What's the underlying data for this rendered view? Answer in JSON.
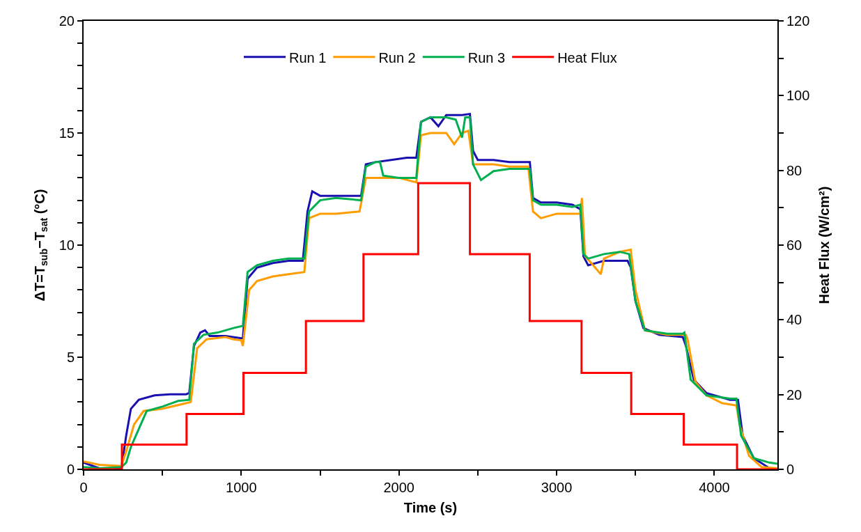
{
  "chart_data": {
    "type": "line",
    "xlabel": "Time (s)",
    "ylabel": "ΔT=T$_{sub}$−T$_{sat}$ (°C)",
    "y2label": "Heat Flux (W/cm²)",
    "xlim": [
      0,
      4400
    ],
    "ylim": [
      0,
      20
    ],
    "y2lim": [
      0,
      120
    ],
    "xticks": [
      0,
      {
        "value": 500,
        "label": null
      },
      1000,
      {
        "value": 1500,
        "label": null
      },
      2000,
      {
        "value": 2500,
        "label": null
      },
      3000,
      {
        "value": 3500,
        "label": null
      },
      4000
    ],
    "yticks": [
      0,
      {
        "value": 1,
        "label": null
      },
      {
        "value": 2,
        "label": null
      },
      {
        "value": 3,
        "label": null
      },
      {
        "value": 4,
        "label": null
      },
      5,
      {
        "value": 6,
        "label": null
      },
      {
        "value": 7,
        "label": null
      },
      {
        "value": 8,
        "label": null
      },
      {
        "value": 9,
        "label": null
      },
      10,
      {
        "value": 11,
        "label": null
      },
      {
        "value": 12,
        "label": null
      },
      {
        "value": 13,
        "label": null
      },
      {
        "value": 14,
        "label": null
      },
      15,
      {
        "value": 16,
        "label": null
      },
      {
        "value": 17,
        "label": null
      },
      {
        "value": 18,
        "label": null
      },
      {
        "value": 19,
        "label": null
      },
      20
    ],
    "y2ticks": [
      0,
      {
        "value": 10,
        "label": null
      },
      20,
      {
        "value": 30,
        "label": null
      },
      40,
      {
        "value": 50,
        "label": null
      },
      60,
      {
        "value": 70,
        "label": null
      },
      80,
      {
        "value": 90,
        "label": null
      },
      100,
      {
        "value": 110,
        "label": null
      },
      120
    ],
    "legend": "top",
    "line_style": "solid",
    "marker": "none",
    "series": [
      {
        "name": "Run 1",
        "color": "#1a10b0",
        "x": [
          0,
          100,
          240,
          270,
          300,
          350,
          450,
          550,
          650,
          670,
          700,
          740,
          770,
          800,
          900,
          1000,
          1010,
          1040,
          1100,
          1200,
          1300,
          1390,
          1420,
          1450,
          1500,
          1600,
          1760,
          1790,
          1850,
          1950,
          2050,
          2110,
          2140,
          2200,
          2250,
          2300,
          2400,
          2450,
          2470,
          2500,
          2600,
          2700,
          2830,
          2850,
          2900,
          3000,
          3100,
          3150,
          3170,
          3200,
          3300,
          3450,
          3470,
          3500,
          3550,
          3650,
          3800,
          3820,
          3870,
          3950,
          4100,
          4150,
          4180,
          4250,
          4350,
          4400
        ],
        "values": [
          0.3,
          0.05,
          0.05,
          1.5,
          2.7,
          3.1,
          3.3,
          3.35,
          3.35,
          3.4,
          5.5,
          6.1,
          6.2,
          5.95,
          5.95,
          5.85,
          5.85,
          8.5,
          9.0,
          9.2,
          9.3,
          9.3,
          11.5,
          12.4,
          12.2,
          12.2,
          12.2,
          13.6,
          13.7,
          13.8,
          13.9,
          13.9,
          15.5,
          15.7,
          15.3,
          15.8,
          15.8,
          15.85,
          14.2,
          13.8,
          13.8,
          13.7,
          13.7,
          12.1,
          11.9,
          11.9,
          11.8,
          11.6,
          9.5,
          9.1,
          9.3,
          9.3,
          9.0,
          7.5,
          6.3,
          6.0,
          5.9,
          5.5,
          4.0,
          3.4,
          3.1,
          3.1,
          1.5,
          0.5,
          0.05,
          0.0
        ]
      },
      {
        "name": "Run 2",
        "color": "#ff9c00",
        "x": [
          0,
          100,
          240,
          270,
          320,
          380,
          500,
          650,
          680,
          720,
          780,
          900,
          950,
          1000,
          1010,
          1050,
          1100,
          1200,
          1300,
          1400,
          1430,
          1500,
          1600,
          1750,
          1790,
          1850,
          2000,
          2110,
          2140,
          2200,
          2300,
          2350,
          2400,
          2440,
          2470,
          2600,
          2700,
          2820,
          2850,
          2900,
          3000,
          3100,
          3150,
          3160,
          3180,
          3220,
          3280,
          3300,
          3400,
          3470,
          3500,
          3560,
          3700,
          3820,
          3830,
          3880,
          3950,
          4050,
          4140,
          4160,
          4220,
          4300,
          4400
        ],
        "values": [
          0.35,
          0.2,
          0.15,
          0.8,
          2.0,
          2.6,
          2.7,
          2.95,
          3.0,
          5.4,
          5.8,
          5.9,
          5.8,
          5.75,
          5.5,
          8.0,
          8.4,
          8.6,
          8.7,
          8.8,
          11.2,
          11.4,
          11.4,
          11.5,
          13.0,
          13.0,
          13.0,
          12.8,
          14.9,
          15.0,
          15.0,
          14.5,
          15.0,
          15.1,
          13.6,
          13.6,
          13.5,
          13.5,
          11.5,
          11.2,
          11.4,
          11.4,
          11.4,
          12.1,
          9.5,
          9.2,
          8.7,
          9.4,
          9.7,
          9.8,
          8.0,
          6.2,
          6.0,
          6.0,
          5.8,
          3.9,
          3.3,
          2.95,
          2.85,
          2.0,
          0.6,
          0.1,
          0.05
        ]
      },
      {
        "name": "Run 3",
        "color": "#00b050",
        "x": [
          0,
          100,
          240,
          270,
          300,
          350,
          400,
          500,
          600,
          670,
          700,
          760,
          850,
          950,
          1010,
          1040,
          1100,
          1200,
          1300,
          1400,
          1430,
          1500,
          1600,
          1760,
          1790,
          1850,
          1880,
          1900,
          2000,
          2110,
          2140,
          2200,
          2300,
          2360,
          2400,
          2420,
          2450,
          2470,
          2520,
          2600,
          2700,
          2830,
          2850,
          2900,
          3000,
          3100,
          3150,
          3170,
          3200,
          3300,
          3400,
          3460,
          3500,
          3560,
          3700,
          3800,
          3810,
          3850,
          3950,
          4100,
          4140,
          4170,
          4250,
          4350,
          4400
        ],
        "values": [
          0.1,
          0.05,
          0.1,
          0.3,
          1.0,
          1.8,
          2.6,
          2.8,
          3.05,
          3.1,
          5.6,
          6.0,
          6.1,
          6.3,
          6.4,
          8.8,
          9.1,
          9.3,
          9.4,
          9.4,
          11.5,
          12.0,
          12.1,
          12.0,
          13.5,
          13.7,
          13.7,
          13.1,
          13.0,
          13.0,
          15.5,
          15.7,
          15.7,
          15.6,
          14.8,
          15.7,
          15.7,
          13.6,
          12.9,
          13.3,
          13.4,
          13.4,
          12.0,
          11.8,
          11.8,
          11.7,
          11.8,
          9.6,
          9.4,
          9.6,
          9.7,
          9.6,
          7.5,
          6.2,
          6.05,
          6.05,
          6.1,
          4.0,
          3.3,
          3.15,
          3.15,
          1.5,
          0.5,
          0.3,
          0.25
        ]
      },
      {
        "name": "Heat Flux",
        "color": "#ff0000",
        "type": "step",
        "axis": "y2",
        "x": [
          0,
          243,
          653,
          1014,
          1410,
          1775,
          2122,
          2450,
          2829,
          3158,
          3473,
          3806,
          4144,
          4400
        ],
        "values": [
          0,
          6.6,
          14.8,
          25.8,
          39.7,
          57.6,
          76.6,
          57.6,
          39.7,
          25.8,
          14.8,
          6.6,
          0,
          0
        ]
      }
    ]
  }
}
